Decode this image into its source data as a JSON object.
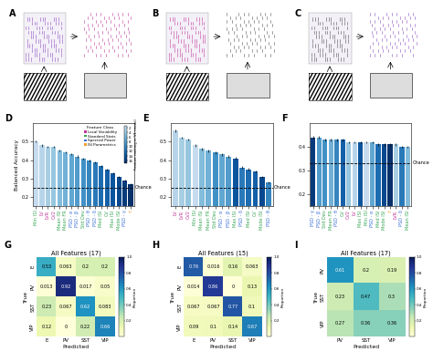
{
  "illustrations": [
    "A",
    "B",
    "C"
  ],
  "chart_data": [
    {
      "type": "bar",
      "panel": "D",
      "ylabel": "Balanced Accuracy",
      "categories": [
        "Min ISI",
        "LV",
        "LVR",
        "CV2",
        "Mean ISI",
        "Mean FR",
        "PSD - α",
        "PSD - β",
        "Std Dev",
        "PSD - θ",
        "PSD - δ",
        "Med ISI",
        "CV",
        "Max ISI",
        "Mode ISI",
        "PSD - γ",
        "τ"
      ],
      "values": [
        0.5,
        0.48,
        0.47,
        0.47,
        0.45,
        0.44,
        0.43,
        0.42,
        0.41,
        0.4,
        0.39,
        0.37,
        0.35,
        0.33,
        0.31,
        0.29,
        0.27
      ],
      "errors": [
        0.006,
        0.006,
        0.005,
        0.005,
        0.005,
        0.005,
        0.005,
        0.005,
        0.005,
        0.005,
        0.005,
        0.005,
        0.005,
        0.005,
        0.005,
        0.005,
        0.005
      ],
      "ranks": [
        1,
        2,
        3,
        4,
        5,
        6,
        7,
        8,
        9,
        10,
        11,
        12,
        13,
        14,
        15,
        16,
        17
      ],
      "classes": [
        "Standard Stats",
        "Local Variability",
        "Local Variability",
        "Local Variability",
        "Standard Stats",
        "Standard Stats",
        "Spectral Power",
        "Spectral Power",
        "Standard Stats",
        "Spectral Power",
        "Spectral Power",
        "Standard Stats",
        "Standard Stats",
        "Standard Stats",
        "Standard Stats",
        "Spectral Power",
        "ISI Parametrics"
      ],
      "legend_title": "Feature Class",
      "legend": "upper right",
      "series": [
        {
          "name": "Local Variability",
          "color": "#c0399a"
        },
        {
          "name": "Standard Stats",
          "color": "#3aa655"
        },
        {
          "name": "Spectral Power",
          "color": "#3b6fd4"
        },
        {
          "name": "ISI Parametrics",
          "color": "#f0a030"
        }
      ],
      "colorbar": {
        "label": "Feature ranking in V1 model",
        "lim": [
          1,
          17
        ],
        "ticks": [
          2,
          4,
          6,
          8,
          10,
          12,
          14,
          16
        ]
      },
      "chance": 0.25,
      "chance_label": "Chance",
      "ylim": [
        0.15,
        0.6
      ],
      "yticks": [
        0.2,
        0.3,
        0.4,
        0.5
      ]
    },
    {
      "type": "bar",
      "panel": "E",
      "categories": [
        "LV",
        "LVR",
        "CV2",
        "Min ISI",
        "Mean ISI",
        "Mean FR",
        "Std Dev",
        "PSD - α",
        "PSD - β",
        "Max ISI",
        "PSD - δ",
        "Med ISI",
        "CV",
        "Mode ISI",
        "PSD - θ"
      ],
      "values": [
        0.56,
        0.52,
        0.51,
        0.48,
        0.46,
        0.45,
        0.44,
        0.43,
        0.42,
        0.41,
        0.36,
        0.35,
        0.34,
        0.31,
        0.28
      ],
      "errors": [
        0.007,
        0.006,
        0.006,
        0.006,
        0.006,
        0.006,
        0.006,
        0.006,
        0.006,
        0.006,
        0.006,
        0.006,
        0.006,
        0.006,
        0.006
      ],
      "ranks": [
        2,
        3,
        4,
        1,
        5,
        6,
        9,
        7,
        8,
        14,
        11,
        12,
        13,
        15,
        10
      ],
      "classes": [
        "Local Variability",
        "Local Variability",
        "Local Variability",
        "Standard Stats",
        "Standard Stats",
        "Standard Stats",
        "Standard Stats",
        "Spectral Power",
        "Spectral Power",
        "Standard Stats",
        "Spectral Power",
        "Standard Stats",
        "Standard Stats",
        "Standard Stats",
        "Spectral Power"
      ],
      "chance": 0.25,
      "chance_label": "Chance",
      "ylim": [
        0.15,
        0.6
      ],
      "yticks": [
        0.2,
        0.3,
        0.4,
        0.5
      ]
    },
    {
      "type": "bar",
      "panel": "F",
      "categories": [
        "PSD - γ",
        "PSD - β",
        "Std Dev",
        "Mean FR",
        "PSD - θ",
        "CV",
        "CV2",
        "LV",
        "Max ISI",
        "Min ISI",
        "PSD - α",
        "Med ISI",
        "Mode ISI",
        "τ",
        "LVR",
        "PSD - δ",
        "Mean ISI"
      ],
      "values": [
        0.44,
        0.44,
        0.43,
        0.43,
        0.43,
        0.43,
        0.42,
        0.42,
        0.42,
        0.42,
        0.42,
        0.41,
        0.41,
        0.41,
        0.41,
        0.4,
        0.4
      ],
      "errors": [
        0.005,
        0.005,
        0.005,
        0.005,
        0.005,
        0.005,
        0.005,
        0.005,
        0.005,
        0.005,
        0.005,
        0.005,
        0.005,
        0.005,
        0.005,
        0.005,
        0.005
      ],
      "ranks": [
        16,
        8,
        9,
        6,
        10,
        13,
        4,
        2,
        14,
        1,
        7,
        12,
        15,
        17,
        3,
        11,
        5
      ],
      "classes": [
        "Spectral Power",
        "Spectral Power",
        "Standard Stats",
        "Standard Stats",
        "Spectral Power",
        "Standard Stats",
        "Local Variability",
        "Local Variability",
        "Standard Stats",
        "Standard Stats",
        "Spectral Power",
        "Standard Stats",
        "Standard Stats",
        "ISI Parametrics",
        "Local Variability",
        "Spectral Power",
        "Standard Stats"
      ],
      "chance": 0.333,
      "chance_label": "Chance",
      "ylim": [
        0.15,
        0.5
      ],
      "yticks": [
        0.2,
        0.3,
        0.4
      ]
    },
    {
      "type": "heatmap",
      "panel": "G",
      "title": "All Features (17)",
      "xlabel": "Predicted",
      "ylabel": "True",
      "x_categories": [
        "E",
        "PV",
        "SST",
        "VIP"
      ],
      "y_categories": [
        "E",
        "PV",
        "SST",
        "VIP"
      ],
      "cells": [
        [
          0.53,
          0.063,
          0.2,
          0.2
        ],
        [
          0.013,
          0.92,
          0.017,
          0.05
        ],
        [
          0.23,
          0.067,
          0.62,
          0.083
        ],
        [
          0.12,
          0,
          0.22,
          0.66
        ]
      ],
      "data_labels": true,
      "colorbar": {
        "label": "Proportion",
        "lim": [
          0,
          1
        ],
        "ticks": [
          0.2,
          0.4,
          0.6,
          0.8,
          1.0
        ]
      }
    },
    {
      "type": "heatmap",
      "panel": "H",
      "title": "All Features (15)",
      "xlabel": "Predicted",
      "ylabel": "True",
      "x_categories": [
        "E",
        "PV",
        "SST",
        "VIP"
      ],
      "y_categories": [
        "E",
        "PV",
        "SST",
        "VIP"
      ],
      "cells": [
        [
          0.76,
          0.016,
          0.16,
          0.063
        ],
        [
          0.014,
          0.86,
          0,
          0.13
        ],
        [
          0.067,
          0.067,
          0.77,
          0.1
        ],
        [
          0.09,
          0.1,
          0.14,
          0.67
        ]
      ],
      "data_labels": true,
      "colorbar": {
        "label": "Proportion",
        "lim": [
          0,
          1
        ],
        "ticks": [
          0.2,
          0.4,
          0.6,
          0.8,
          1.0
        ]
      }
    },
    {
      "type": "heatmap",
      "panel": "I",
      "title": "All Features (17)",
      "xlabel": "Predicted",
      "ylabel": "True",
      "x_categories": [
        "PV",
        "SST",
        "VIP"
      ],
      "y_categories": [
        "PV",
        "SST",
        "VIP"
      ],
      "cells": [
        [
          0.61,
          0.2,
          0.19
        ],
        [
          0.23,
          0.47,
          0.3
        ],
        [
          0.27,
          0.36,
          0.36
        ]
      ],
      "data_labels": true,
      "colorbar": {
        "label": "Proportion",
        "lim": [
          0,
          1
        ],
        "ticks": [
          0.2,
          0.4,
          0.6,
          0.8,
          1.0
        ]
      }
    }
  ]
}
